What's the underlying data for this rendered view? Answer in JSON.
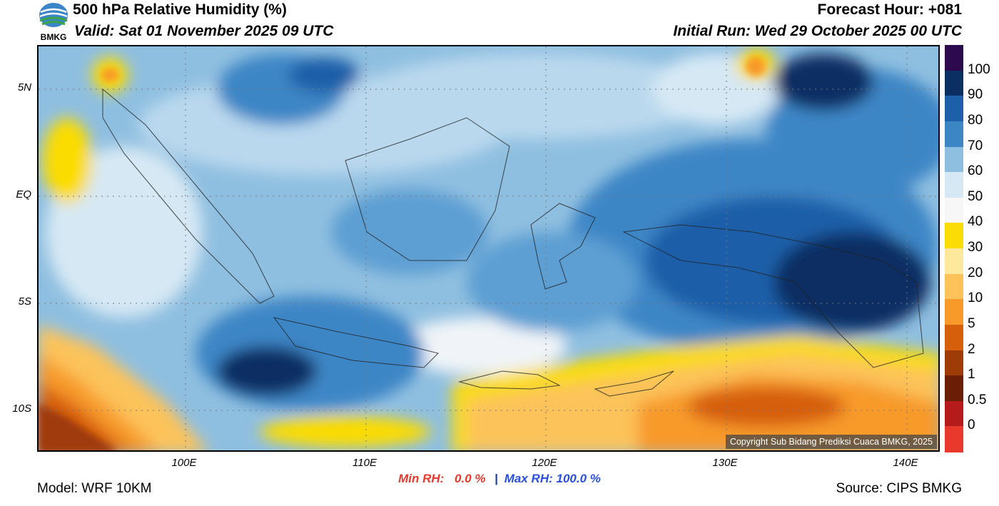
{
  "header": {
    "title": "500 hPa Relative Humidity (%)",
    "valid": "Valid: Sat 01 November 2025 09 UTC",
    "forecast_hour": "Forecast Hour: +081",
    "initial_run": "Initial Run: Wed 29 October 2025 00 UTC"
  },
  "logo": {
    "text": "BMKG"
  },
  "map": {
    "lat_labels": [
      "5N",
      "EQ",
      "5S",
      "10S"
    ],
    "lon_labels": [
      "100E",
      "110E",
      "120E",
      "130E",
      "140E"
    ],
    "copyright": "Copyright Sub Bidang Prediksi Cuaca BMKG, 2025"
  },
  "colorbar": {
    "levels": [
      "100",
      "90",
      "80",
      "70",
      "60",
      "50",
      "40",
      "30",
      "20",
      "10",
      "5",
      "2",
      "1",
      "0.5",
      "0"
    ],
    "colors": [
      "#2d0a4e",
      "#0b2e63",
      "#1d5fa8",
      "#3d86c6",
      "#8fbfe0",
      "#d6e8f4",
      "#f7f7f7",
      "#fbdc05",
      "#fde89c",
      "#fcc35a",
      "#f79a29",
      "#d65f0b",
      "#9f3b07",
      "#6a1e06",
      "#b51b1b",
      "#e8392c"
    ]
  },
  "footer": {
    "model": "Model: WRF 10KM",
    "min_label": "Min RH:",
    "min_value": "0.0 %",
    "separator": "|",
    "max_label": "Max RH:",
    "max_value": "100.0 %",
    "source": "Source: CIPS BMKG"
  }
}
